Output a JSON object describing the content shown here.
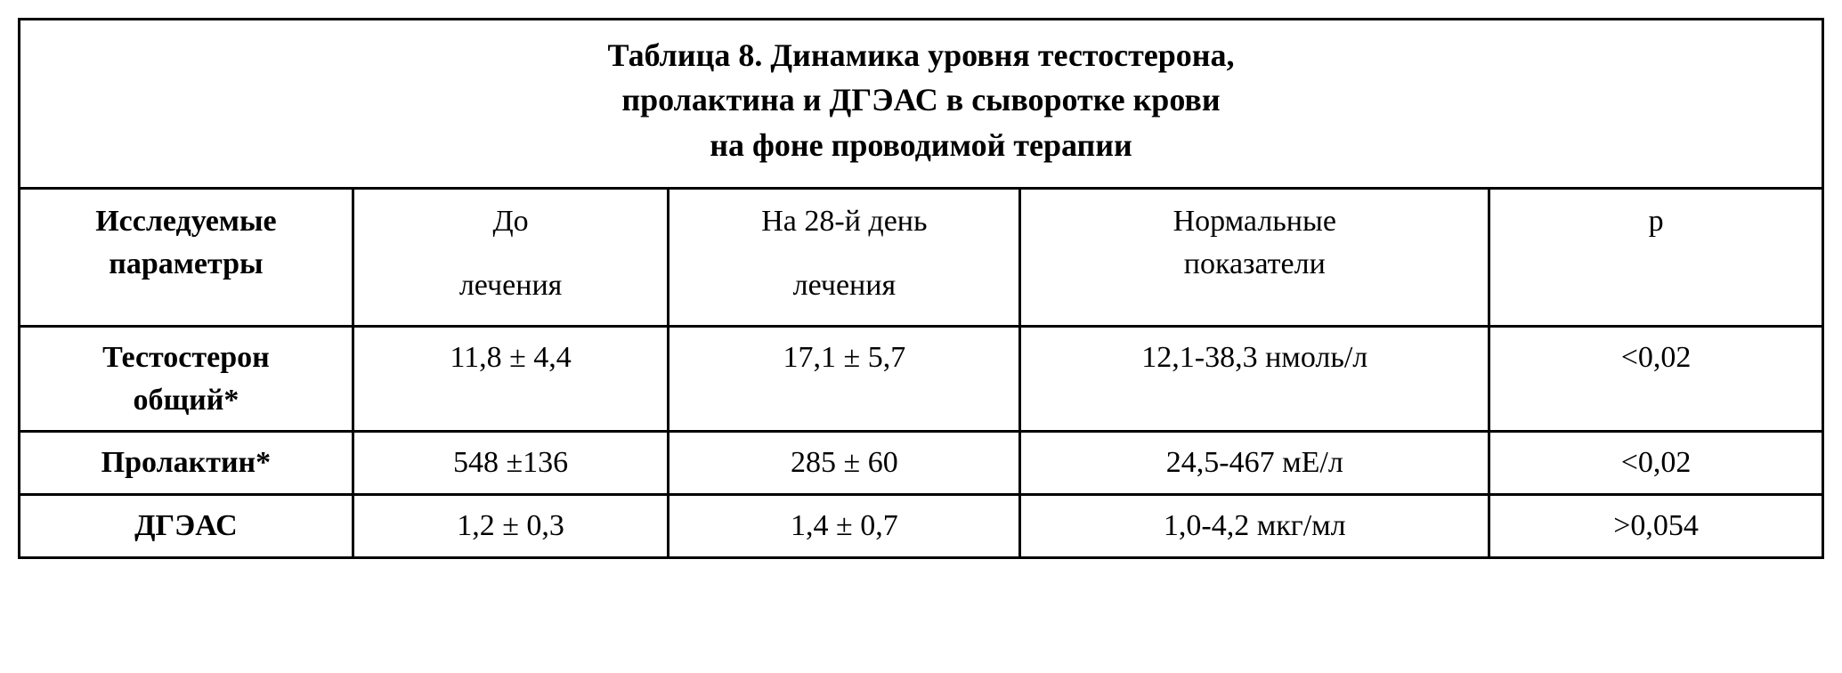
{
  "table": {
    "type": "table",
    "border_color": "#000000",
    "background_color": "#ffffff",
    "text_color": "#000000",
    "font_family": "Times New Roman",
    "title_lines": [
      "Таблица 8.  Динамика уровня тестостерона,",
      "пролактина и ДГЭАС в сыворотке крови",
      "на фоне проводимой терапии"
    ],
    "title_fontsize": 36,
    "title_fontweight": "bold",
    "cell_fontsize": 34,
    "border_width": 3,
    "columns": [
      {
        "key": "parameter",
        "label_top": "Исследуемые",
        "label_bottom": "параметры",
        "width_pct": 18.5,
        "bold": true,
        "align": "center"
      },
      {
        "key": "before",
        "label_top": "До",
        "label_bottom": "лечения",
        "width_pct": 17.5,
        "bold": false,
        "align": "center"
      },
      {
        "key": "day28",
        "label_top": "На 28-й день",
        "label_bottom": "лечения",
        "width_pct": 19.5,
        "bold": false,
        "align": "center"
      },
      {
        "key": "normal",
        "label_top": "Нормальные",
        "label_bottom": "показатели",
        "width_pct": 26.0,
        "bold": false,
        "align": "center"
      },
      {
        "key": "p",
        "label_top": "p",
        "label_bottom": "",
        "width_pct": 18.5,
        "bold": false,
        "align": "center"
      }
    ],
    "rows": [
      {
        "parameter_top": "Тестостерон",
        "parameter_bottom": "общий*",
        "before": "11,8 ± 4,4",
        "day28": "17,1 ± 5,7",
        "normal": "12,1-38,3 нмоль/л",
        "p": "<0,02"
      },
      {
        "parameter_top": "Пролактин*",
        "parameter_bottom": "",
        "before": "548 ±136",
        "day28": "285 ± 60",
        "normal": "24,5-467 мЕ/л",
        "p": "<0,02"
      },
      {
        "parameter_top": "ДГЭАС",
        "parameter_bottom": "",
        "before": "1,2 ± 0,3",
        "day28": "1,4 ± 0,7",
        "normal": "1,0-4,2 мкг/мл",
        "p": ">0,054"
      }
    ]
  }
}
